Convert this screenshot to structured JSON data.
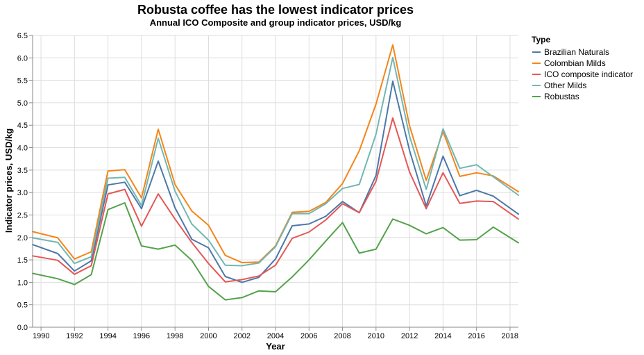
{
  "chart_data": {
    "type": "line",
    "title": "Robusta coffee has the lowest indicator prices",
    "subtitle": "Annual ICO Composite and group indicator prices, USD/kg",
    "xlabel": "Year",
    "ylabel": "Indicator prices, USD/kg",
    "xlim": [
      1989.5,
      2018.5
    ],
    "ylim": [
      0,
      6.5
    ],
    "x_ticks": [
      1990,
      1992,
      1994,
      1996,
      1998,
      2000,
      2002,
      2004,
      2006,
      2008,
      2010,
      2012,
      2014,
      2016,
      2018
    ],
    "y_ticks": [
      0.0,
      0.5,
      1.0,
      1.5,
      2.0,
      2.5,
      3.0,
      3.5,
      4.0,
      4.5,
      5.0,
      5.5,
      6.0,
      6.5
    ],
    "grid": true,
    "legend": {
      "title": "Type",
      "position": "right"
    },
    "x": [
      1989.5,
      1991,
      1992,
      1993,
      1994,
      1995,
      1996,
      1997,
      1998,
      1999,
      2000,
      2001,
      2002,
      2003,
      2004,
      2005,
      2006,
      2007,
      2008,
      2009,
      2010,
      2011,
      2012,
      2013,
      2014,
      2015,
      2016,
      2017,
      2018.5
    ],
    "series": [
      {
        "name": "Brazilian Naturals",
        "color": "#4c78a8",
        "values": [
          1.84,
          1.64,
          1.25,
          1.48,
          3.17,
          3.23,
          2.64,
          3.7,
          2.66,
          1.96,
          1.77,
          1.13,
          1.0,
          1.11,
          1.52,
          2.26,
          2.3,
          2.47,
          2.8,
          2.55,
          3.38,
          5.48,
          3.94,
          2.7,
          3.81,
          2.93,
          3.05,
          2.92,
          2.52
        ]
      },
      {
        "name": "Colombian Milds",
        "color": "#f58518",
        "values": [
          2.13,
          1.99,
          1.52,
          1.68,
          3.48,
          3.51,
          2.88,
          4.41,
          3.18,
          2.59,
          2.27,
          1.6,
          1.44,
          1.45,
          1.81,
          2.56,
          2.58,
          2.78,
          3.2,
          3.93,
          4.97,
          6.29,
          4.49,
          3.27,
          4.36,
          3.36,
          3.44,
          3.37,
          3.02
        ]
      },
      {
        "name": "ICO composite indicator",
        "color": "#e45756",
        "values": [
          1.59,
          1.49,
          1.18,
          1.37,
          2.97,
          3.07,
          2.25,
          2.97,
          2.41,
          1.89,
          1.42,
          1.01,
          1.06,
          1.14,
          1.38,
          1.98,
          2.12,
          2.39,
          2.75,
          2.55,
          3.25,
          4.66,
          3.46,
          2.64,
          3.44,
          2.76,
          2.81,
          2.8,
          2.41
        ]
      },
      {
        "name": "Other Milds",
        "color": "#72b7b2",
        "values": [
          1.99,
          1.89,
          1.42,
          1.57,
          3.32,
          3.34,
          2.71,
          4.21,
          3.03,
          2.3,
          1.94,
          1.38,
          1.37,
          1.43,
          1.79,
          2.53,
          2.53,
          2.75,
          3.09,
          3.18,
          4.3,
          6.01,
          4.26,
          3.07,
          4.42,
          3.54,
          3.62,
          3.35,
          2.94
        ]
      },
      {
        "name": "Robustas",
        "color": "#54a24b",
        "values": [
          1.2,
          1.08,
          0.95,
          1.17,
          2.62,
          2.77,
          1.81,
          1.74,
          1.83,
          1.49,
          0.91,
          0.61,
          0.66,
          0.81,
          0.79,
          1.12,
          1.5,
          1.92,
          2.33,
          1.65,
          1.74,
          2.41,
          2.27,
          2.08,
          2.22,
          1.94,
          1.95,
          2.23,
          1.88
        ]
      }
    ]
  }
}
